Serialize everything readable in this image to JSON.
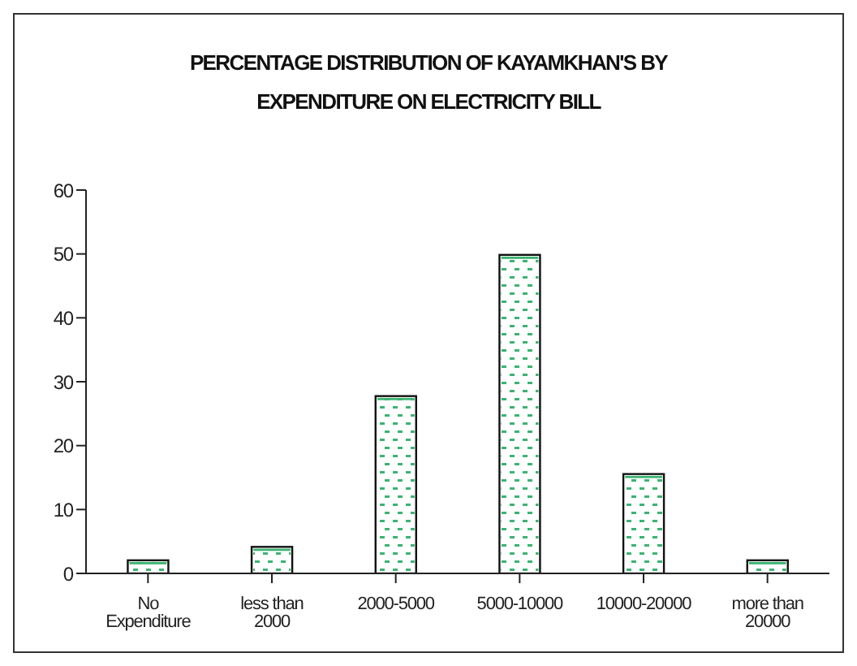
{
  "chart_data": {
    "type": "bar",
    "title": "PERCENTAGE DISTRIBUTION OF KAYAMKHAN'S BY EXPENDITURE ON ELECTRICITY BILL",
    "categories": [
      "No Expenditure",
      "less than 2000",
      "2000-5000",
      "5000-10000",
      "10000-20000",
      "more than 20000"
    ],
    "values": [
      1.8,
      3.9,
      27.5,
      49.6,
      15.3,
      1.8
    ],
    "color": "#3cb371",
    "ylim": [
      0,
      60
    ],
    "yticks": [
      0,
      10,
      20,
      30,
      40,
      50,
      60
    ],
    "grid": false,
    "legend": false
  }
}
